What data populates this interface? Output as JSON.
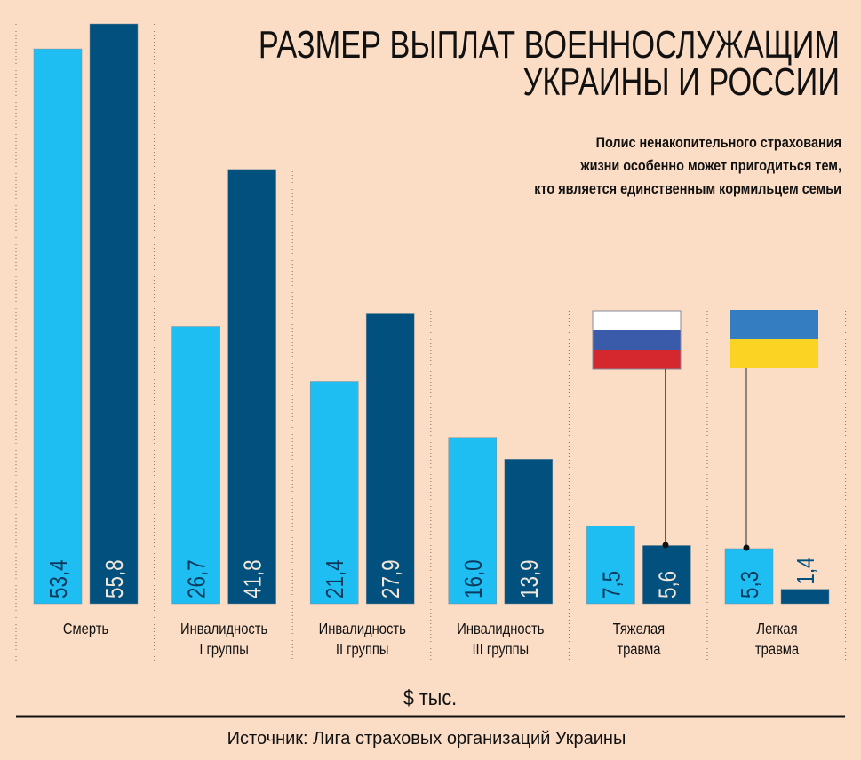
{
  "chart_data": {
    "type": "bar",
    "title": "РАЗМЕР ВЫПЛАТ ВОЕННОСЛУЖАЩИМ УКРАИНЫ И РОССИИ",
    "title_lines": [
      "РАЗМЕР ВЫПЛАТ ВОЕННОСЛУЖАЩИМ",
      "УКРАИНЫ И РОССИИ"
    ],
    "subtitle_lines": [
      "Полис ненакопительного страхования",
      "жизни особенно может пригодиться тем,",
      "кто является единственным кормильцем семьи"
    ],
    "categories": [
      [
        "Смерть"
      ],
      [
        "Инвалидность",
        "I группы"
      ],
      [
        "Инвалидность",
        "II группы"
      ],
      [
        "Инвалидность",
        "III группы"
      ],
      [
        "Тяжелая",
        "травма"
      ],
      [
        "Легкая",
        "травма"
      ]
    ],
    "series": [
      {
        "flag": "ukraine-flag",
        "color": "#1ebef2",
        "label_color": "#0b3a5c",
        "values": [
          53.4,
          26.7,
          21.4,
          16.0,
          7.5,
          5.3
        ],
        "labels": [
          "53,4",
          "26,7",
          "21,4",
          "16,0",
          "7,5",
          "5,3"
        ]
      },
      {
        "flag": "russia-flag",
        "color": "#02507e",
        "label_color": "#f3e6da",
        "values": [
          55.8,
          41.8,
          27.9,
          13.9,
          5.6,
          1.4
        ],
        "labels": [
          "55,8",
          "41,8",
          "27,9",
          "13,9",
          "5,6",
          "1,4"
        ]
      }
    ],
    "ylim": [
      0,
      56
    ],
    "unit_label": "$ тыс.",
    "grid": false,
    "legend": "flags with leader lines"
  },
  "source": "Источник: Лига страховых организаций Украины",
  "colors": {
    "background": "#fbdcc5",
    "ukraine_blue": "#357dc1",
    "ukraine_yellow": "#fbd322",
    "russia_white": "#ffffff",
    "russia_blue": "#3a5ba9",
    "russia_red": "#d4282e"
  }
}
